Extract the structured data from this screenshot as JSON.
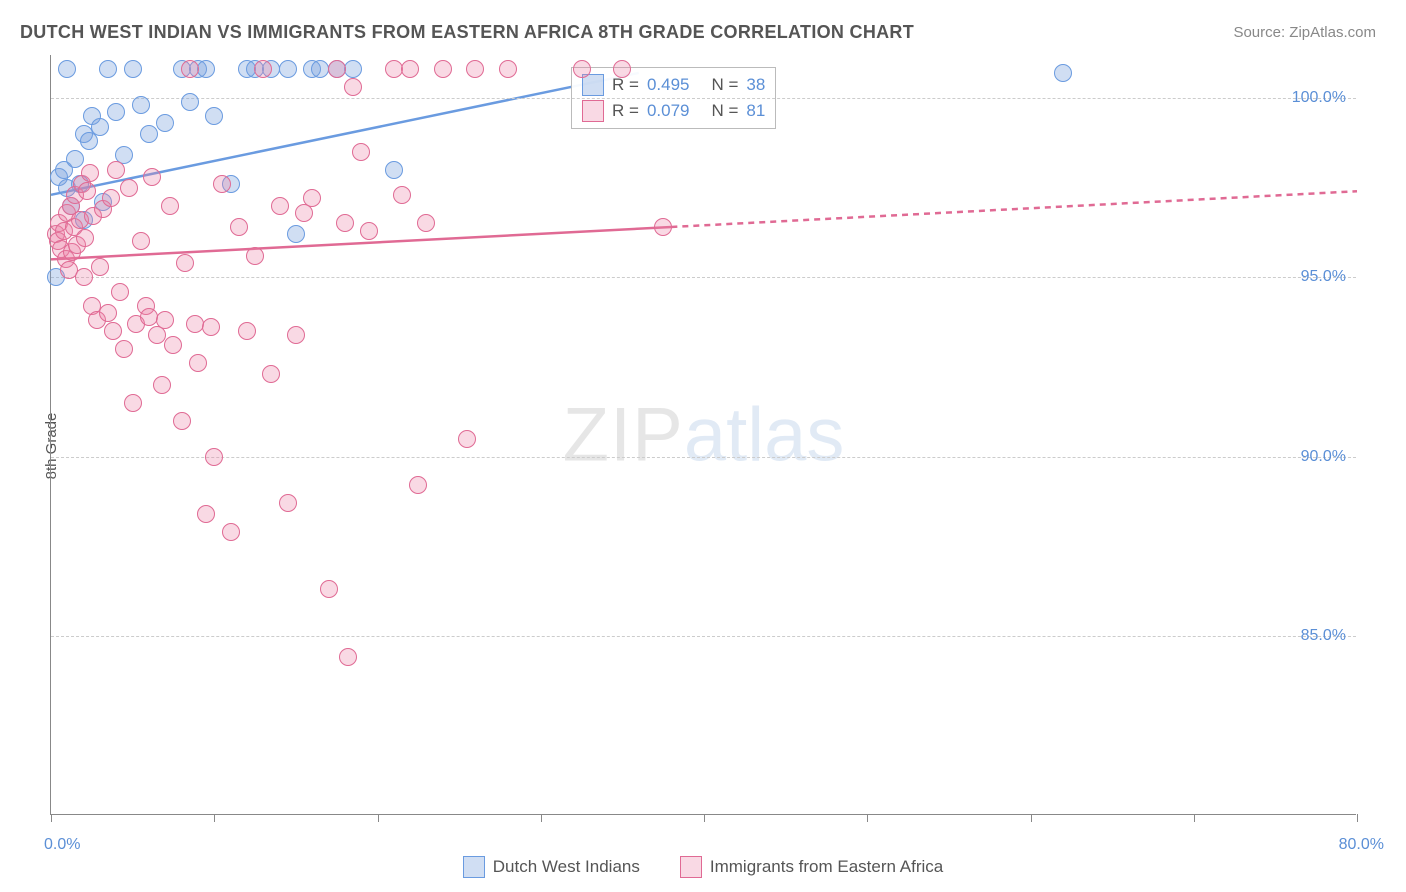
{
  "title": "DUTCH WEST INDIAN VS IMMIGRANTS FROM EASTERN AFRICA 8TH GRADE CORRELATION CHART",
  "source_label": "Source: ZipAtlas.com",
  "ylabel": "8th Grade",
  "watermark_a": "ZIP",
  "watermark_b": "atlas",
  "chart": {
    "type": "scatter",
    "xlim": [
      0,
      80
    ],
    "ylim": [
      80,
      101.2
    ],
    "x_ticks": [
      0,
      10,
      20,
      30,
      40,
      50,
      60,
      70,
      80
    ],
    "x_tick_labels": {
      "0": "0.0%",
      "80": "80.0%"
    },
    "y_gridlines": [
      85,
      90,
      95,
      100
    ],
    "y_labels": [
      "85.0%",
      "90.0%",
      "95.0%",
      "100.0%"
    ],
    "background_color": "#ffffff",
    "grid_color": "#cccccc",
    "marker_radius": 9,
    "series": [
      {
        "name": "Dutch West Indians",
        "color_fill": "rgba(120,160,220,0.35)",
        "color_stroke": "#6a9be0",
        "R": "0.495",
        "N": "38",
        "trend": {
          "x1": 0,
          "y1": 97.3,
          "x2": 36,
          "y2": 100.7,
          "solid_until": 36,
          "dash_to_x": 36
        },
        "points": [
          [
            0.3,
            95.0
          ],
          [
            0.5,
            97.8
          ],
          [
            0.8,
            98.0
          ],
          [
            1.0,
            97.5
          ],
          [
            1.0,
            100.8
          ],
          [
            1.2,
            97.0
          ],
          [
            1.5,
            98.3
          ],
          [
            1.8,
            97.6
          ],
          [
            2.0,
            99.0
          ],
          [
            2.0,
            96.6
          ],
          [
            2.3,
            98.8
          ],
          [
            2.5,
            99.5
          ],
          [
            3.0,
            99.2
          ],
          [
            3.2,
            97.1
          ],
          [
            3.5,
            100.8
          ],
          [
            4.0,
            99.6
          ],
          [
            4.5,
            98.4
          ],
          [
            5.0,
            100.8
          ],
          [
            5.5,
            99.8
          ],
          [
            6.0,
            99.0
          ],
          [
            7.0,
            99.3
          ],
          [
            8.0,
            100.8
          ],
          [
            8.5,
            99.9
          ],
          [
            9.0,
            100.8
          ],
          [
            9.5,
            100.8
          ],
          [
            10.0,
            99.5
          ],
          [
            11.0,
            97.6
          ],
          [
            12.0,
            100.8
          ],
          [
            12.5,
            100.8
          ],
          [
            13.5,
            100.8
          ],
          [
            14.5,
            100.8
          ],
          [
            15.0,
            96.2
          ],
          [
            16.0,
            100.8
          ],
          [
            16.5,
            100.8
          ],
          [
            17.5,
            100.8
          ],
          [
            18.5,
            100.8
          ],
          [
            21.0,
            98.0
          ],
          [
            62.0,
            100.7
          ]
        ]
      },
      {
        "name": "Immigrants from Eastern Africa",
        "color_fill": "rgba(235,130,165,0.30)",
        "color_stroke": "#e06a94",
        "R": "0.079",
        "N": "81",
        "trend": {
          "x1": 0,
          "y1": 95.5,
          "x2": 80,
          "y2": 97.4,
          "solid_until": 38,
          "dash_to_x": 80
        },
        "points": [
          [
            0.3,
            96.2
          ],
          [
            0.4,
            96.0
          ],
          [
            0.5,
            96.5
          ],
          [
            0.6,
            95.8
          ],
          [
            0.8,
            96.3
          ],
          [
            0.9,
            95.5
          ],
          [
            1.0,
            96.8
          ],
          [
            1.1,
            95.2
          ],
          [
            1.2,
            97.0
          ],
          [
            1.3,
            95.7
          ],
          [
            1.4,
            96.4
          ],
          [
            1.5,
            97.3
          ],
          [
            1.6,
            95.9
          ],
          [
            1.8,
            96.6
          ],
          [
            1.9,
            97.6
          ],
          [
            2.0,
            95.0
          ],
          [
            2.1,
            96.1
          ],
          [
            2.2,
            97.4
          ],
          [
            2.4,
            97.9
          ],
          [
            2.5,
            94.2
          ],
          [
            2.6,
            96.7
          ],
          [
            2.8,
            93.8
          ],
          [
            3.0,
            95.3
          ],
          [
            3.2,
            96.9
          ],
          [
            3.5,
            94.0
          ],
          [
            3.7,
            97.2
          ],
          [
            3.8,
            93.5
          ],
          [
            4.0,
            98.0
          ],
          [
            4.2,
            94.6
          ],
          [
            4.5,
            93.0
          ],
          [
            4.8,
            97.5
          ],
          [
            5.0,
            91.5
          ],
          [
            5.2,
            93.7
          ],
          [
            5.5,
            96.0
          ],
          [
            5.8,
            94.2
          ],
          [
            6.0,
            93.9
          ],
          [
            6.2,
            97.8
          ],
          [
            6.5,
            93.4
          ],
          [
            6.8,
            92.0
          ],
          [
            7.0,
            93.8
          ],
          [
            7.3,
            97.0
          ],
          [
            7.5,
            93.1
          ],
          [
            8.0,
            91.0
          ],
          [
            8.2,
            95.4
          ],
          [
            8.5,
            100.8
          ],
          [
            8.8,
            93.7
          ],
          [
            9.0,
            92.6
          ],
          [
            9.5,
            88.4
          ],
          [
            9.8,
            93.6
          ],
          [
            10.0,
            90.0
          ],
          [
            10.5,
            97.6
          ],
          [
            11.0,
            87.9
          ],
          [
            11.5,
            96.4
          ],
          [
            12.0,
            93.5
          ],
          [
            12.5,
            95.6
          ],
          [
            13.0,
            100.8
          ],
          [
            13.5,
            92.3
          ],
          [
            14.0,
            97.0
          ],
          [
            14.5,
            88.7
          ],
          [
            15.0,
            93.4
          ],
          [
            15.5,
            96.8
          ],
          [
            16.0,
            97.2
          ],
          [
            17.0,
            86.3
          ],
          [
            17.5,
            100.8
          ],
          [
            18.0,
            96.5
          ],
          [
            18.2,
            84.4
          ],
          [
            18.5,
            100.3
          ],
          [
            19.0,
            98.5
          ],
          [
            19.5,
            96.3
          ],
          [
            21.0,
            100.8
          ],
          [
            21.5,
            97.3
          ],
          [
            22.0,
            100.8
          ],
          [
            22.5,
            89.2
          ],
          [
            23.0,
            96.5
          ],
          [
            24.0,
            100.8
          ],
          [
            25.5,
            90.5
          ],
          [
            26.0,
            100.8
          ],
          [
            28.0,
            100.8
          ],
          [
            32.5,
            100.8
          ],
          [
            35.0,
            100.8
          ],
          [
            37.5,
            96.4
          ]
        ]
      }
    ]
  },
  "legend_top": {
    "rows": [
      {
        "swatch_fill": "rgba(120,160,220,0.35)",
        "swatch_stroke": "#6a9be0",
        "r_label": "R =",
        "r_val": "0.495",
        "n_label": "N =",
        "n_val": "38"
      },
      {
        "swatch_fill": "rgba(235,130,165,0.30)",
        "swatch_stroke": "#e06a94",
        "r_label": "R =",
        "r_val": "0.079",
        "n_label": "N =",
        "n_val": "81"
      }
    ]
  },
  "legend_bottom": [
    {
      "swatch_fill": "rgba(120,160,220,0.35)",
      "swatch_stroke": "#6a9be0",
      "label": "Dutch West Indians"
    },
    {
      "swatch_fill": "rgba(235,130,165,0.30)",
      "swatch_stroke": "#e06a94",
      "label": "Immigrants from Eastern Africa"
    }
  ]
}
